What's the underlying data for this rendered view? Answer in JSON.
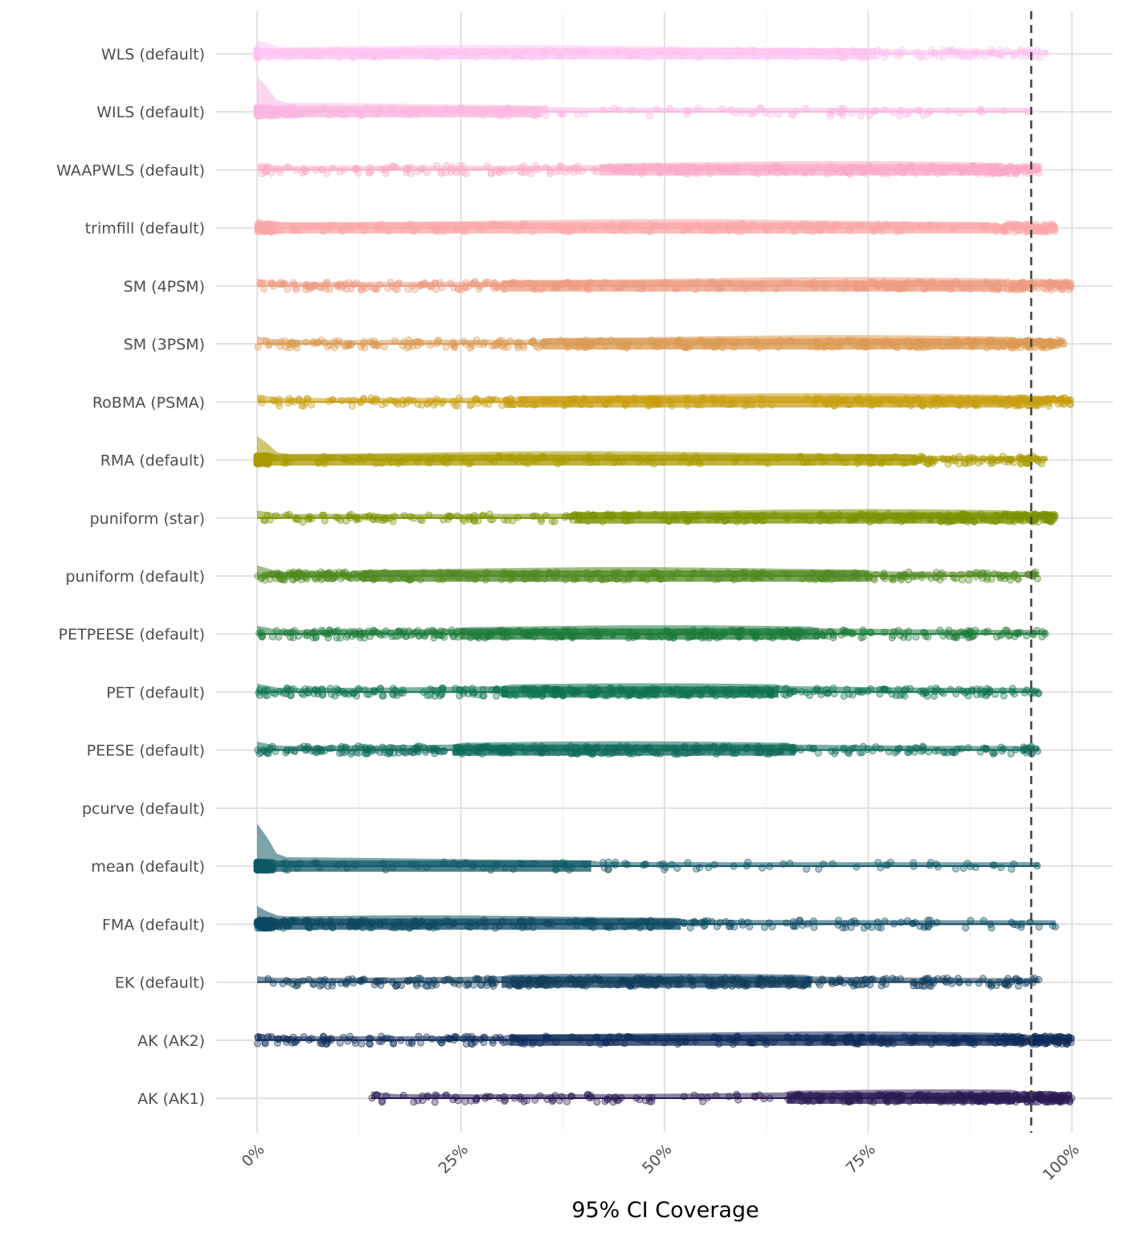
{
  "chart_data": {
    "type": "scatter",
    "subtype": "raincloud (half-violin density + jittered points + boxplot)",
    "title": "",
    "xlabel": "95% CI Coverage",
    "ylabel": "",
    "xlim": [
      0,
      100
    ],
    "x_ticks": [
      "0%",
      "25%",
      "50%",
      "75%",
      "100%"
    ],
    "x_tick_values": [
      0,
      25,
      50,
      75,
      100
    ],
    "reference_line": {
      "value": 95,
      "style": "dashed",
      "color": "#404040"
    },
    "grid": true,
    "legend": "none",
    "categories": [
      "AK (AK1)",
      "AK (AK2)",
      "EK (default)",
      "FMA (default)",
      "mean (default)",
      "pcurve (default)",
      "PEESE (default)",
      "PET (default)",
      "PETPEESE (default)",
      "puniform (default)",
      "puniform (star)",
      "RMA (default)",
      "RoBMA (PSMA)",
      "SM (3PSM)",
      "SM (4PSM)",
      "trimfill (default)",
      "WAAPWLS (default)",
      "WILS (default)",
      "WLS (default)"
    ],
    "series": [
      {
        "name": "AK (AK1)",
        "color": "#2b1b54",
        "box": [
          14,
          65,
          84,
          93,
          100
        ],
        "spike": 0.08,
        "empty": false
      },
      {
        "name": "AK (AK2)",
        "color": "#0f2a5a",
        "box": [
          0,
          31,
          72,
          93,
          100
        ],
        "spike": 0.08,
        "empty": false
      },
      {
        "name": "EK (default)",
        "color": "#113d5c",
        "box": [
          0,
          30,
          48,
          68,
          96
        ],
        "spike": 0.05,
        "empty": false
      },
      {
        "name": "FMA (default)",
        "color": "#0c4a62",
        "box": [
          0,
          2,
          20,
          52,
          98
        ],
        "spike": 0.35,
        "empty": false
      },
      {
        "name": "mean (default)",
        "color": "#0f5966",
        "box": [
          0,
          0,
          2,
          41,
          96
        ],
        "spike": 1.0,
        "empty": false
      },
      {
        "name": "pcurve (default)",
        "color": "#0e6464",
        "box": null,
        "spike": 0,
        "empty": true
      },
      {
        "name": "PEESE (default)",
        "color": "#0e6b5a",
        "box": [
          0,
          24,
          45,
          66,
          96
        ],
        "spike": 0.12,
        "empty": false
      },
      {
        "name": "PET (default)",
        "color": "#0d7350",
        "box": [
          0,
          30,
          48,
          64,
          96
        ],
        "spike": 0.12,
        "empty": false
      },
      {
        "name": "PETPEESE (default)",
        "color": "#1c7b3a",
        "box": [
          0,
          25,
          50,
          69,
          97
        ],
        "spike": 0.12,
        "empty": false
      },
      {
        "name": "puniform (default)",
        "color": "#4f8a20",
        "box": [
          0,
          13,
          45,
          75,
          96
        ],
        "spike": 0.18,
        "empty": false
      },
      {
        "name": "puniform (star)",
        "color": "#7a9200",
        "box": [
          0,
          39,
          75,
          93,
          98
        ],
        "spike": 0.1,
        "empty": false
      },
      {
        "name": "RMA (default)",
        "color": "#a89a00",
        "box": [
          0,
          0,
          40,
          81,
          97
        ],
        "spike": 0.55,
        "empty": false
      },
      {
        "name": "RoBMA (PSMA)",
        "color": "#c99f10",
        "box": [
          0,
          32,
          70,
          92,
          100
        ],
        "spike": 0.1,
        "empty": false
      },
      {
        "name": "SM (3PSM)",
        "color": "#dc9a52",
        "box": [
          0,
          35,
          72,
          92,
          99
        ],
        "spike": 0.1,
        "empty": false
      },
      {
        "name": "SM (4PSM)",
        "color": "#ee9c82",
        "box": [
          0,
          30,
          72,
          92,
          100
        ],
        "spike": 0.1,
        "empty": false
      },
      {
        "name": "trimfill (default)",
        "color": "#fca6a8",
        "box": [
          0,
          2,
          50,
          90,
          98
        ],
        "spike": 0.15,
        "empty": false
      },
      {
        "name": "WAAPWLS (default)",
        "color": "#fbaac8",
        "box": [
          0,
          42,
          72,
          90,
          96
        ],
        "spike": 0.05,
        "empty": false
      },
      {
        "name": "WILS (default)",
        "color": "#fbb6e2",
        "box": [
          0,
          0,
          5,
          35,
          95
        ],
        "spike": 0.8,
        "empty": false
      },
      {
        "name": "WLS (default)",
        "color": "#fdc4f0",
        "box": [
          0,
          0,
          30,
          76,
          97
        ],
        "spike": 0.25,
        "empty": false
      }
    ]
  }
}
